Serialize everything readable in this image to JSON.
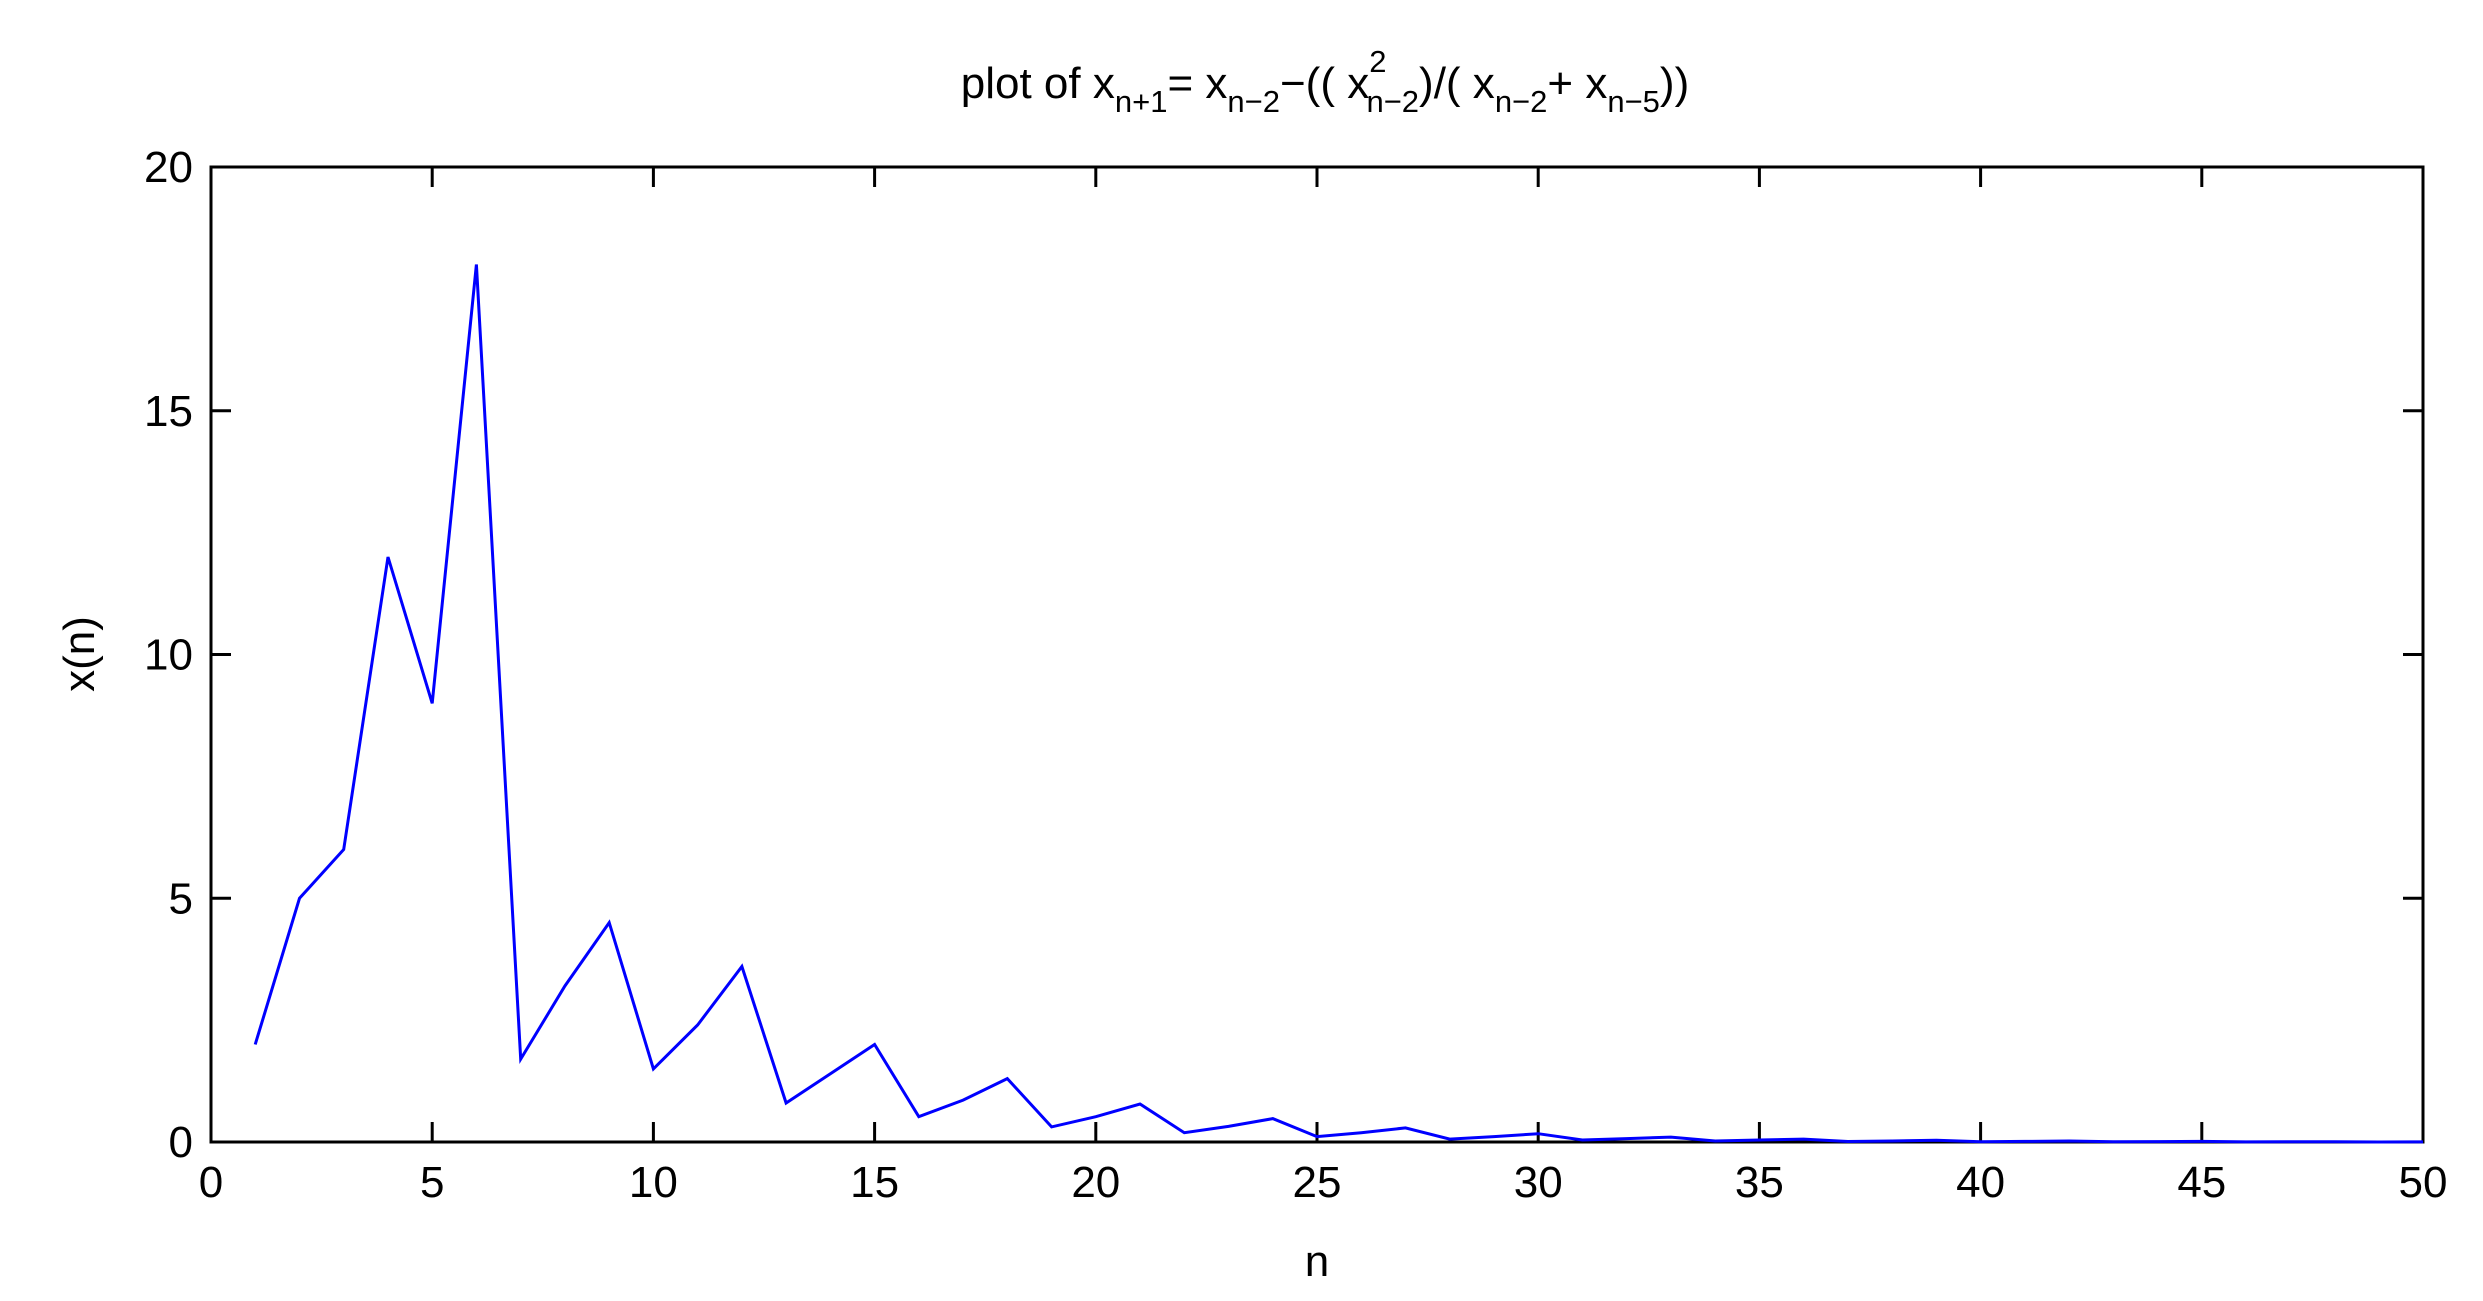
{
  "chart_data": {
    "type": "line",
    "title": {
      "prefix": "plot of x",
      "sub1": "n+1",
      "eq": "= x",
      "sub2": "n−2",
      "mid1": "−(( x",
      "sup3": "2",
      "sub3": "n−2",
      "mid2": ")/( x",
      "sub4": "n−2",
      "mid3": "+ x",
      "sub5": "n−5",
      "suffix": "))"
    },
    "xlabel": "n",
    "ylabel": "x(n)",
    "xlim": [
      0,
      50
    ],
    "ylim": [
      0,
      20
    ],
    "xticks": [
      0,
      5,
      10,
      15,
      20,
      25,
      30,
      35,
      40,
      45,
      50
    ],
    "yticks": [
      0,
      5,
      10,
      15,
      20
    ],
    "grid": false,
    "line_color": "#0000ff",
    "x": [
      1,
      2,
      3,
      4,
      5,
      6,
      7,
      8,
      9,
      10,
      11,
      12,
      13,
      14,
      15,
      16,
      17,
      18,
      19,
      20,
      21,
      22,
      23,
      24,
      25,
      26,
      27,
      28,
      29,
      30,
      31,
      32,
      33,
      34,
      35,
      36,
      37,
      38,
      39,
      40,
      41,
      42,
      43,
      44,
      45,
      46,
      47,
      48,
      49,
      50
    ],
    "y": [
      2,
      5,
      6,
      12,
      9,
      18,
      1.7,
      3.2,
      4.5,
      1.5,
      2.4,
      3.6,
      0.8,
      1.4,
      2.0,
      0.52,
      0.86,
      1.3,
      0.31,
      0.52,
      0.78,
      0.19,
      0.32,
      0.48,
      0.11,
      0.19,
      0.29,
      0.06,
      0.11,
      0.17,
      0.04,
      0.07,
      0.1,
      0.02,
      0.04,
      0.06,
      0.01,
      0.02,
      0.035,
      0.006,
      0.013,
      0.02,
      0.004,
      0.008,
      0.012,
      0.002,
      0.004,
      0.007,
      0.001,
      0.002
    ]
  }
}
